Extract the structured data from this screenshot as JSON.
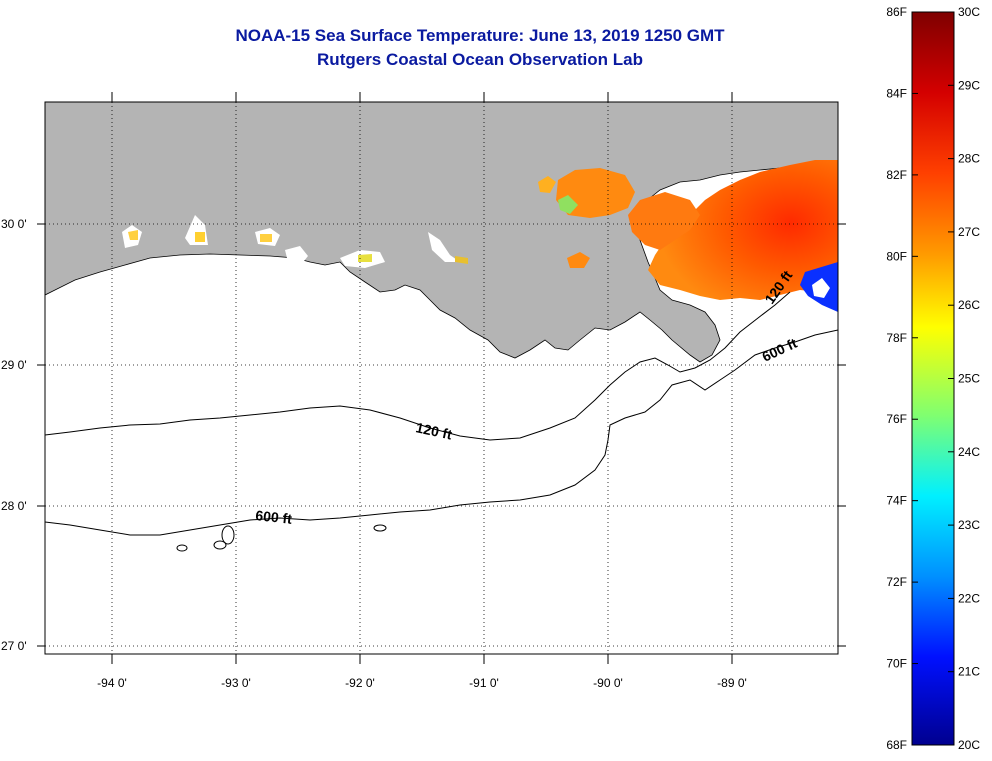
{
  "title": {
    "line1": "NOAA-15 Sea Surface Temperature:  June 13, 2019 1250 GMT",
    "line2": "Rutgers Coastal Ocean Observation Lab"
  },
  "map": {
    "lon_labels": [
      "-94 0'",
      "-93 0'",
      "-92 0'",
      "-91 0'",
      "-90 0'",
      "-89 0'"
    ],
    "lat_labels": [
      "30 0'",
      "29 0'",
      "28 0'",
      "27 0'"
    ],
    "contour_labels": [
      "120 ft",
      "600 ft",
      "120 ft",
      "600 ft"
    ],
    "colors": {
      "land": "#b4b4b4",
      "ocean_no_data": "#ffffff",
      "contour": "#000000"
    }
  },
  "colorbar": {
    "fahrenheit_labels": [
      "86F",
      "84F",
      "82F",
      "80F",
      "78F",
      "76F",
      "74F",
      "72F",
      "70F",
      "68F"
    ],
    "celsius_labels": [
      "30C",
      "29C",
      "28C",
      "27C",
      "26C",
      "25C",
      "24C",
      "23C",
      "22C",
      "21C",
      "20C"
    ],
    "colors": [
      "#7f0000",
      "#ff0000",
      "#ff8000",
      "#ffff00",
      "#80ff80",
      "#00ffff",
      "#0080ff",
      "#0000ff",
      "#00008f"
    ]
  }
}
